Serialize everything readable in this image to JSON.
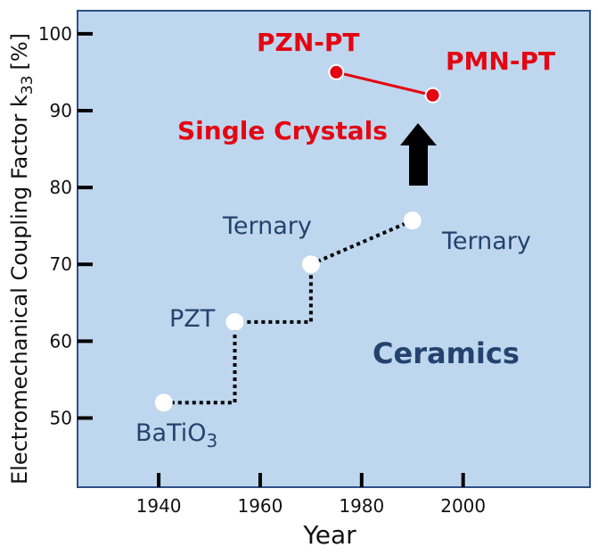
{
  "chart_data": {
    "type": "line",
    "title": "",
    "xlabel": "Year",
    "ylabel_main": "Electromechanical Coupling Factor k",
    "ylabel_sub": "33",
    "ylabel_unit": "[%]",
    "xlim": [
      1924,
      2025
    ],
    "ylim": [
      41,
      103
    ],
    "xticks": [
      1940,
      1960,
      1980,
      2000
    ],
    "xtick_marks": [
      1940,
      1960,
      1980,
      2000
    ],
    "yticks": [
      50,
      60,
      70,
      80,
      90,
      100
    ],
    "grid": false,
    "colors": {
      "plot_background": "#bed7ee",
      "frame": "#2f4f86",
      "ceramics_text": "#24426e",
      "single_crystal": "#e30613",
      "ceramic_marker": "#ffffff",
      "dotted_line": "#000000"
    },
    "series": [
      {
        "group": "ceramics",
        "style": "dotted-step",
        "points": [
          {
            "x": 1941,
            "y": 52,
            "label": "BaTiO",
            "label_sub": "3"
          },
          {
            "x": 1955,
            "y": 62.5,
            "label": "PZT"
          },
          {
            "x": 1970,
            "y": 70,
            "label": "Ternary"
          },
          {
            "x": 1990,
            "y": 75.7,
            "label": "Ternary"
          }
        ]
      },
      {
        "group": "single-crystals",
        "style": "solid",
        "points": [
          {
            "x": 1975,
            "y": 95,
            "label": "PZN-PT"
          },
          {
            "x": 1994,
            "y": 92,
            "label": "PMN-PT"
          }
        ]
      }
    ],
    "annotations": [
      {
        "text": "Single Crystals"
      },
      {
        "text": "Ceramics"
      },
      {
        "shape": "arrow-up"
      }
    ]
  }
}
